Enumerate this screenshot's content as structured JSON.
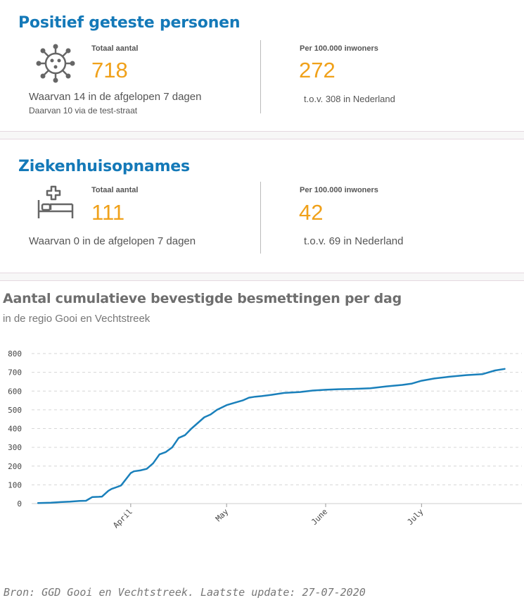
{
  "positive": {
    "title": "Positief geteste personen",
    "total_label": "Totaal aantal",
    "total_value": "718",
    "sub_line1": "Waarvan 14 in de afgelopen 7 dagen",
    "sub_line2": "Daarvan 10 via de test-straat",
    "per_label": "Per 100.000 inwoners",
    "per_value": "272",
    "per_sub": "t.o.v. 308 in Nederland",
    "icon": "virus-icon"
  },
  "hospital": {
    "title": "Ziekenhuisopnames",
    "total_label": "Totaal aantal",
    "total_value": "111",
    "sub_line1": "Waarvan 0 in de afgelopen 7 dagen",
    "per_label": "Per 100.000 inwoners",
    "per_value": "42",
    "per_sub": "t.o.v. 69 in Nederland",
    "icon": "hospital-bed-icon"
  },
  "colors": {
    "accent_blue": "#1479b8",
    "accent_orange": "#f0a11a",
    "line": "#1a80bb"
  },
  "chart_data": {
    "type": "line",
    "title": "Aantal cumulatieve bevestigde besmettingen per dag",
    "subtitle": "in de regio Gooi en Vechtstreek",
    "xlabel": "",
    "ylabel": "",
    "ylim": [
      0,
      800
    ],
    "yticks": [
      "0",
      "100",
      "200",
      "300",
      "400",
      "500",
      "600",
      "700",
      "800"
    ],
    "xticks": [
      {
        "label": "April",
        "date": "2020-04-01"
      },
      {
        "label": "May",
        "date": "2020-05-01"
      },
      {
        "label": "June",
        "date": "2020-06-01"
      },
      {
        "label": "July",
        "date": "2020-07-01"
      }
    ],
    "grid": true,
    "series": [
      {
        "x": [
          "2020-03-03",
          "2020-03-07",
          "2020-03-10",
          "2020-03-13",
          "2020-03-16",
          "2020-03-18",
          "2020-03-20",
          "2020-03-22",
          "2020-03-23",
          "2020-03-25",
          "2020-03-26",
          "2020-03-28",
          "2020-03-29",
          "2020-04-01",
          "2020-04-02",
          "2020-04-04",
          "2020-04-06",
          "2020-04-08",
          "2020-04-10",
          "2020-04-12",
          "2020-04-14",
          "2020-04-16",
          "2020-04-18",
          "2020-04-20",
          "2020-04-22",
          "2020-04-24",
          "2020-04-26",
          "2020-04-28",
          "2020-05-01",
          "2020-05-04",
          "2020-05-06",
          "2020-05-08",
          "2020-05-10",
          "2020-05-12",
          "2020-05-15",
          "2020-05-19",
          "2020-05-24",
          "2020-05-28",
          "2020-06-01",
          "2020-06-05",
          "2020-06-10",
          "2020-06-15",
          "2020-06-20",
          "2020-06-25",
          "2020-06-28",
          "2020-07-01",
          "2020-07-05",
          "2020-07-10",
          "2020-07-15",
          "2020-07-20",
          "2020-07-24",
          "2020-07-27"
        ],
        "values": [
          3,
          5,
          8,
          10,
          14,
          15,
          35,
          36,
          37,
          68,
          78,
          90,
          97,
          163,
          172,
          177,
          185,
          215,
          262,
          275,
          300,
          350,
          365,
          400,
          430,
          460,
          475,
          500,
          525,
          540,
          550,
          565,
          570,
          573,
          580,
          590,
          595,
          603,
          607,
          610,
          612,
          615,
          625,
          633,
          640,
          655,
          667,
          677,
          685,
          690,
          710,
          718
        ]
      }
    ]
  },
  "footer": "Bron: GGD Gooi en Vechtstreek. Laatste update: 27-07-2020"
}
